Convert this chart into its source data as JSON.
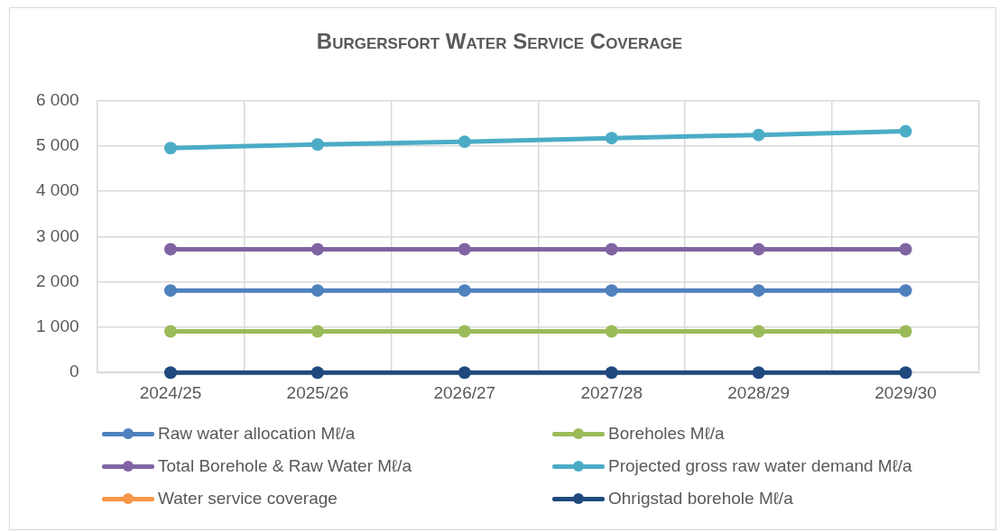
{
  "chart_data": {
    "type": "line",
    "title": "Burgersfort Water Service Coverage",
    "categories": [
      "2024/25",
      "2025/26",
      "2026/27",
      "2027/28",
      "2028/29",
      "2029/30"
    ],
    "series": [
      {
        "name": "Raw water allocation Mℓ/a",
        "color": "#4f81bd",
        "values": [
          1810,
          1810,
          1810,
          1810,
          1810,
          1810
        ]
      },
      {
        "name": "Boreholes Mℓ/a",
        "color": "#9bbb59",
        "values": [
          910,
          910,
          910,
          910,
          910,
          910
        ]
      },
      {
        "name": "Total Borehole & Raw Water Mℓ/a",
        "color": "#8064a2",
        "values": [
          2720,
          2720,
          2720,
          2720,
          2720,
          2720
        ]
      },
      {
        "name": "Projected gross raw water demand Mℓ/a",
        "color": "#4bacc6",
        "values": [
          4950,
          5030,
          5090,
          5170,
          5240,
          5320
        ]
      },
      {
        "name": "Water service coverage",
        "color": "#f79646",
        "values": [
          null,
          null,
          null,
          null,
          null,
          null
        ]
      },
      {
        "name": "Ohrigstad borehole Mℓ/a",
        "color": "#1f497d",
        "values": [
          0,
          0,
          0,
          0,
          0,
          0
        ]
      }
    ],
    "ylim": [
      0,
      6000
    ],
    "yticks": [
      {
        "value": 0,
        "label": "0"
      },
      {
        "value": 1000,
        "label": "1 000"
      },
      {
        "value": 2000,
        "label": "2 000"
      },
      {
        "value": 3000,
        "label": "3 000"
      },
      {
        "value": 4000,
        "label": "4 000"
      },
      {
        "value": 5000,
        "label": "5 000"
      },
      {
        "value": 6000,
        "label": "6 000"
      }
    ],
    "grid": true,
    "legend": "bottom",
    "marker": "circle",
    "line_style": "solid"
  }
}
